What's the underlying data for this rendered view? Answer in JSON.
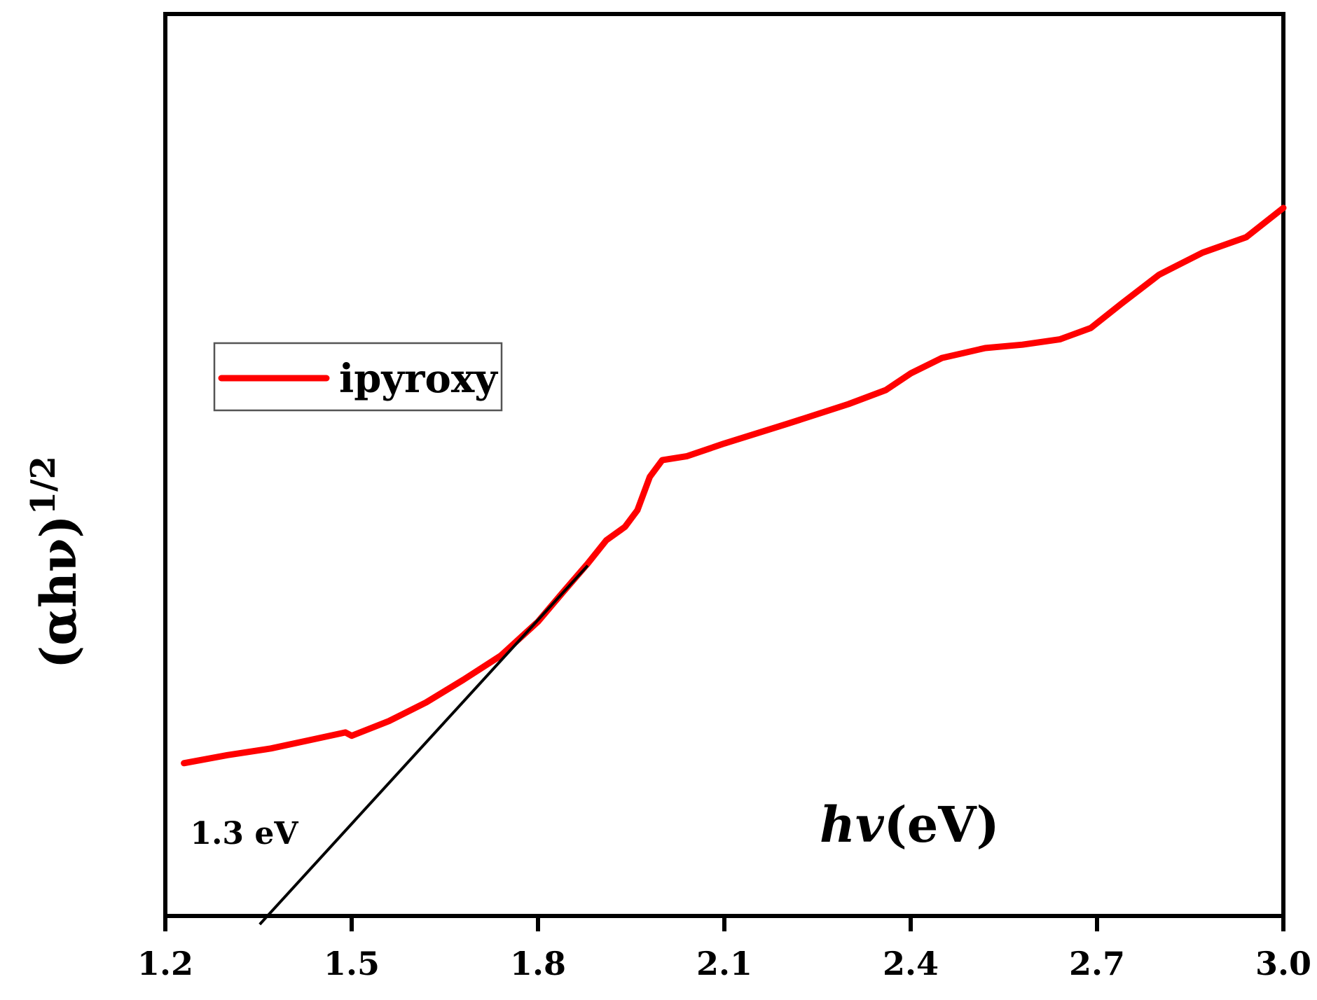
{
  "chart_data": {
    "type": "line",
    "title": "",
    "xlabel_prefix": "hv",
    "xlabel_unit": "(eV)",
    "ylabel_base": "(αhν)",
    "ylabel_exp": "1/2",
    "xlim": [
      1.2,
      3.0
    ],
    "ylim": [
      0,
      1
    ],
    "x_ticks": [
      1.2,
      1.5,
      1.8,
      2.1,
      2.4,
      2.7,
      3.0
    ],
    "x_tick_labels": [
      "1.2",
      "1.5",
      "1.8",
      "2.1",
      "2.4",
      "2.7",
      "3.0"
    ],
    "grid": false,
    "legend_position": "top-left",
    "series": [
      {
        "name": "ipyroxy",
        "color": "#ff0000",
        "x": [
          1.23,
          1.3,
          1.37,
          1.43,
          1.49,
          1.5,
          1.56,
          1.62,
          1.68,
          1.74,
          1.8,
          1.84,
          1.88,
          1.91,
          1.94,
          1.96,
          1.98,
          2.0,
          2.04,
          2.1,
          2.2,
          2.3,
          2.36,
          2.4,
          2.45,
          2.52,
          2.58,
          2.64,
          2.69,
          2.74,
          2.8,
          2.87,
          2.94,
          3.0
        ],
        "y": [
          0.229,
          0.241,
          0.251,
          0.263,
          0.275,
          0.27,
          0.292,
          0.32,
          0.354,
          0.39,
          0.441,
          0.485,
          0.528,
          0.563,
          0.583,
          0.608,
          0.658,
          0.683,
          0.689,
          0.708,
          0.737,
          0.767,
          0.788,
          0.813,
          0.836,
          0.851,
          0.856,
          0.864,
          0.881,
          0.918,
          0.961,
          0.994,
          1.017,
          1.061
        ]
      }
    ],
    "annotations": [
      {
        "type": "tangent-line",
        "color": "#000000",
        "x1": 1.352,
        "y1": 0.0,
        "x2": 1.88,
        "y2": 0.525
      },
      {
        "type": "text",
        "text": "1.3 eV",
        "x": 1.24,
        "y": 0.108
      }
    ]
  }
}
